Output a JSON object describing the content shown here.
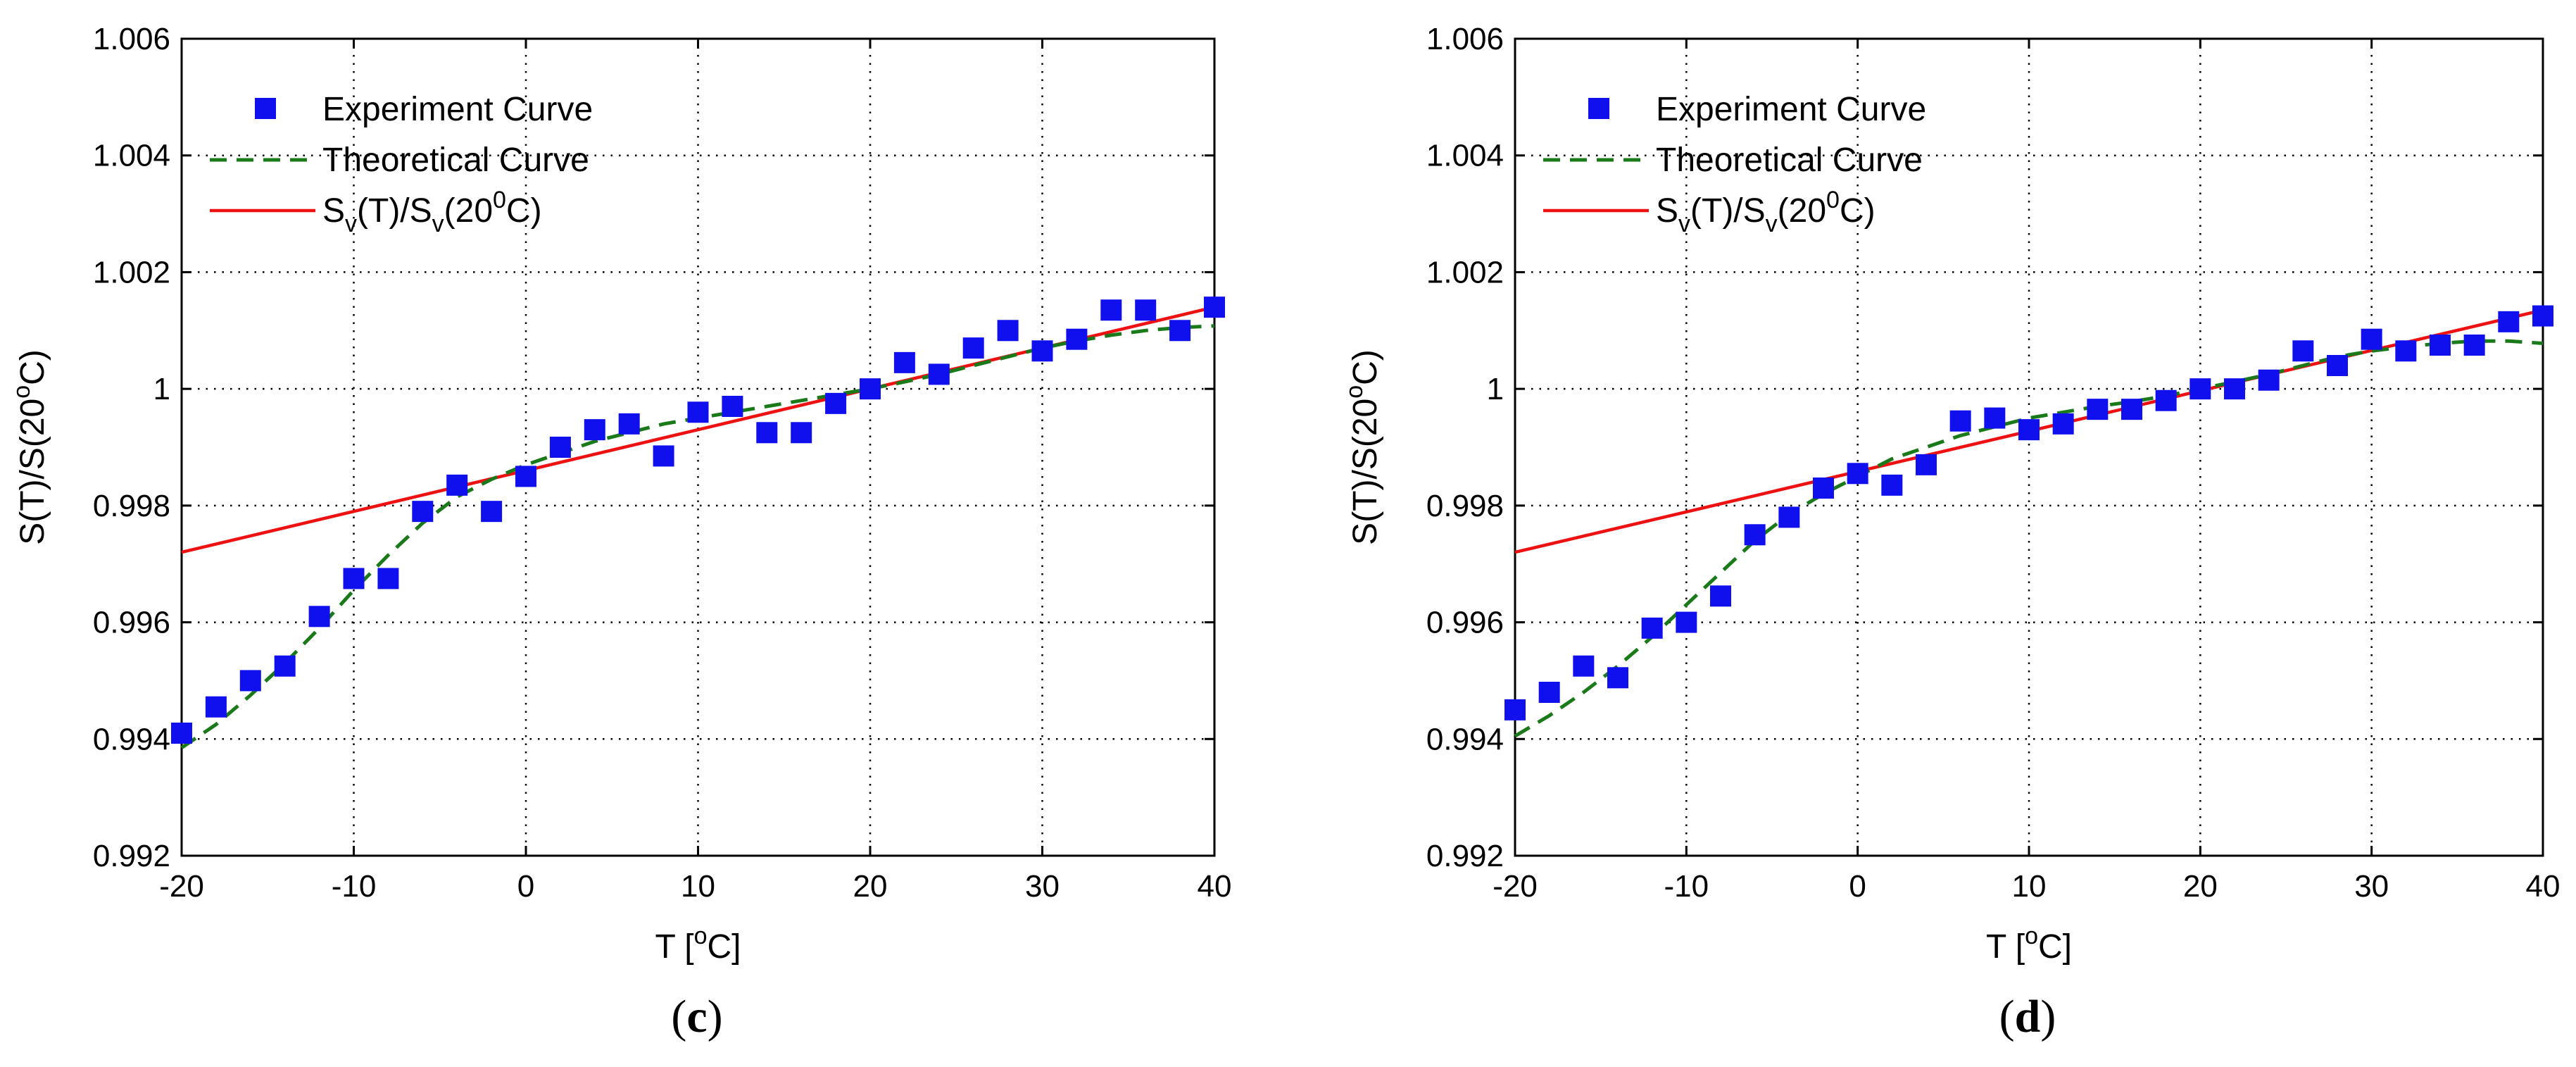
{
  "chart_data": [
    {
      "type": "line",
      "panel_label": {
        "open": "(",
        "letter": "c",
        "close": ")"
      },
      "xlabel": {
        "main": "T [",
        "sup": "o",
        "tail": "C]"
      },
      "ylabel": {
        "main": "S(T)/S(20",
        "sup": "o",
        "tail": "C)"
      },
      "xlim": [
        -20,
        40
      ],
      "ylim": [
        0.992,
        1.006
      ],
      "xticks": [
        -20,
        -10,
        0,
        10,
        20,
        30,
        40
      ],
      "xtick_labels": [
        "-20",
        "-10",
        "0",
        "10",
        "20",
        "30",
        "40"
      ],
      "yticks": [
        0.992,
        0.994,
        0.996,
        0.998,
        1.0,
        1.002,
        1.004,
        1.006
      ],
      "ytick_labels": [
        "0.992",
        "0.994",
        "0.996",
        "0.998",
        "1",
        "1.002",
        "1.004",
        "1.006"
      ],
      "grid": true,
      "legend_position": "top-left",
      "legend": [
        {
          "key": "experiment",
          "label": "Experiment Curve"
        },
        {
          "key": "theoretical",
          "label": "Theoretical Curve"
        },
        {
          "key": "sv",
          "parts": [
            "S",
            "v",
            "(T)/S",
            "v",
            "(20",
            "0",
            "C)"
          ]
        }
      ],
      "colors": {
        "experiment": "#1010ee",
        "theoretical": "#1a7a1a",
        "sv": "#ee1111",
        "grid": "#000000"
      },
      "series": [
        {
          "key": "experiment",
          "name": "Experiment Curve",
          "style": "markers",
          "x": [
            -20,
            -18,
            -16,
            -14,
            -12,
            -10,
            -8,
            -6,
            -4,
            -2,
            0,
            2,
            4,
            6,
            8,
            10,
            12,
            14,
            16,
            18,
            20,
            22,
            24,
            26,
            28,
            30,
            32,
            34,
            36,
            38,
            40
          ],
          "y": [
            0.9941,
            0.99455,
            0.995,
            0.99525,
            0.9961,
            0.99675,
            0.99675,
            0.9979,
            0.99835,
            0.9979,
            0.9985,
            0.999,
            0.9993,
            0.9994,
            0.99885,
            0.9996,
            0.9997,
            0.99925,
            0.99925,
            0.99975,
            1.0,
            1.00045,
            1.00025,
            1.0007,
            1.001,
            1.00065,
            1.00085,
            1.00135,
            1.00135,
            1.001,
            1.0014
          ]
        },
        {
          "key": "theoretical",
          "name": "Theoretical Curve",
          "style": "dashed",
          "x": [
            -20,
            -18,
            -16,
            -14,
            -12,
            -10,
            -8,
            -6,
            -4,
            -2,
            0,
            2,
            4,
            6,
            8,
            10,
            12,
            14,
            16,
            18,
            20,
            22,
            24,
            26,
            28,
            30,
            32,
            34,
            36,
            38,
            40
          ],
          "y": [
            0.99385,
            0.99425,
            0.99475,
            0.9953,
            0.9959,
            0.99655,
            0.99715,
            0.9977,
            0.99815,
            0.99845,
            0.9987,
            0.9989,
            0.9991,
            0.99925,
            0.9994,
            0.9995,
            0.9996,
            0.9997,
            0.9998,
            0.9999,
            1.0,
            1.00012,
            1.00025,
            1.0004,
            1.00055,
            1.0007,
            1.00082,
            1.00092,
            1.001,
            1.00105,
            1.00108
          ]
        },
        {
          "key": "sv",
          "name": "Sv(T)/Sv(20 C)",
          "style": "solid",
          "x": [
            -20,
            40
          ],
          "y": [
            0.9972,
            1.0014
          ]
        }
      ]
    },
    {
      "type": "line",
      "panel_label": {
        "open": "(",
        "letter": "d",
        "close": ")"
      },
      "xlabel": {
        "main": "T [",
        "sup": "o",
        "tail": "C]"
      },
      "ylabel": {
        "main": "S(T)/S(20",
        "sup": "o",
        "tail": "C)"
      },
      "xlim": [
        -20,
        40
      ],
      "ylim": [
        0.992,
        1.006
      ],
      "xticks": [
        -20,
        -10,
        0,
        10,
        20,
        30,
        40
      ],
      "xtick_labels": [
        "-20",
        "-10",
        "0",
        "10",
        "20",
        "30",
        "40"
      ],
      "yticks": [
        0.992,
        0.994,
        0.996,
        0.998,
        1.0,
        1.002,
        1.004,
        1.006
      ],
      "ytick_labels": [
        "0.992",
        "0.994",
        "0.996",
        "0.998",
        "1",
        "1.002",
        "1.004",
        "1.006"
      ],
      "grid": true,
      "legend_position": "top-left",
      "legend": [
        {
          "key": "experiment",
          "label": "Experiment Curve"
        },
        {
          "key": "theoretical",
          "label": "Theoretical Curve"
        },
        {
          "key": "sv",
          "parts": [
            "S",
            "v",
            "(T)/S",
            "v",
            "(20",
            "0",
            "C)"
          ]
        }
      ],
      "colors": {
        "experiment": "#1010ee",
        "theoretical": "#1a7a1a",
        "sv": "#ee1111",
        "grid": "#000000"
      },
      "series": [
        {
          "key": "experiment",
          "name": "Experiment Curve",
          "style": "markers",
          "x": [
            -20,
            -18,
            -16,
            -14,
            -12,
            -10,
            -8,
            -6,
            -4,
            -2,
            0,
            2,
            4,
            6,
            8,
            10,
            12,
            14,
            16,
            18,
            20,
            22,
            24,
            26,
            28,
            30,
            32,
            34,
            36,
            38,
            40
          ],
          "y": [
            0.9945,
            0.9948,
            0.99525,
            0.99505,
            0.9959,
            0.996,
            0.99645,
            0.9975,
            0.9978,
            0.9983,
            0.99855,
            0.99835,
            0.9987,
            0.99945,
            0.9995,
            0.9993,
            0.9994,
            0.99965,
            0.99965,
            0.9998,
            1.0,
            1.0,
            1.00015,
            1.00065,
            1.0004,
            1.00085,
            1.00065,
            1.00075,
            1.00075,
            1.00115,
            1.00125
          ]
        },
        {
          "key": "theoretical",
          "name": "Theoretical Curve",
          "style": "dashed",
          "x": [
            -20,
            -18,
            -16,
            -14,
            -12,
            -10,
            -8,
            -6,
            -4,
            -2,
            0,
            2,
            4,
            6,
            8,
            10,
            12,
            14,
            16,
            18,
            20,
            22,
            24,
            26,
            28,
            30,
            32,
            34,
            36,
            38,
            40
          ],
          "y": [
            0.99405,
            0.9944,
            0.9948,
            0.99525,
            0.99575,
            0.9963,
            0.99685,
            0.9974,
            0.99785,
            0.9982,
            0.9985,
            0.9988,
            0.999,
            0.9992,
            0.99935,
            0.9995,
            0.9996,
            0.9997,
            0.99978,
            0.99988,
            1.0,
            1.00012,
            1.00025,
            1.0004,
            1.00055,
            1.00065,
            1.00072,
            1.00078,
            1.00082,
            1.00082,
            1.00078
          ]
        },
        {
          "key": "sv",
          "name": "Sv(T)/Sv(20 C)",
          "style": "solid",
          "x": [
            -20,
            40
          ],
          "y": [
            0.9972,
            1.00135
          ]
        }
      ]
    }
  ]
}
